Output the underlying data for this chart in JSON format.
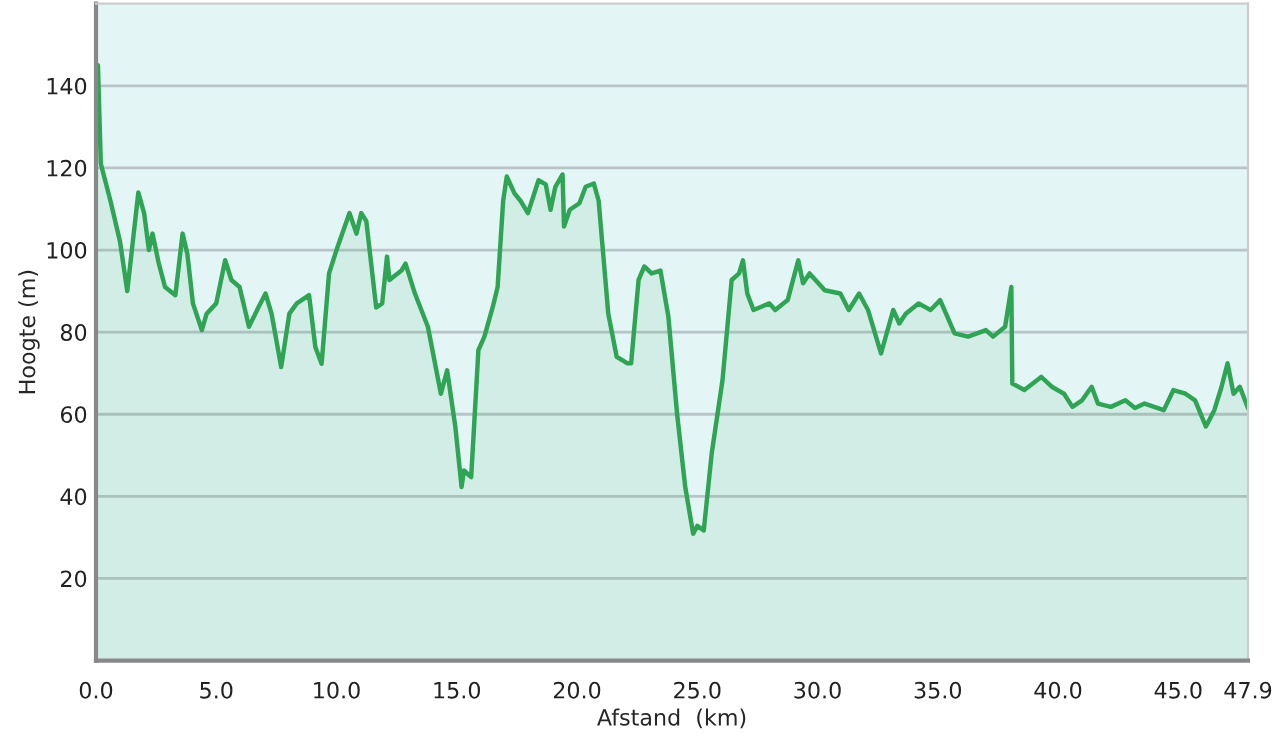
{
  "chart_data": {
    "type": "area",
    "xlabel": "Afstand  (km)",
    "ylabel": "Hoogte (m)",
    "xlim": [
      0,
      47.9
    ],
    "ylim": [
      0,
      160
    ],
    "xticks": [
      {
        "value": 0,
        "label": "0.0"
      },
      {
        "value": 5,
        "label": "5.0"
      },
      {
        "value": 10,
        "label": "10.0"
      },
      {
        "value": 15,
        "label": "15.0"
      },
      {
        "value": 20,
        "label": "20.0"
      },
      {
        "value": 25,
        "label": "25.0"
      },
      {
        "value": 30,
        "label": "30.0"
      },
      {
        "value": 35,
        "label": "35.0"
      },
      {
        "value": 40,
        "label": "40.0"
      },
      {
        "value": 45,
        "label": "45.0"
      },
      {
        "value": 47.9,
        "label": "47.9"
      }
    ],
    "yticks": [
      20,
      40,
      60,
      80,
      100,
      120,
      140
    ],
    "grid": "y",
    "legend": false,
    "series": [
      {
        "color": "#2ea454",
        "x": [
          0,
          0.08,
          0.2,
          0.6,
          1.0,
          1.3,
          1.76,
          2.0,
          2.2,
          2.35,
          2.6,
          2.87,
          3.3,
          3.6,
          3.8,
          4.03,
          4.4,
          4.6,
          5.0,
          5.37,
          5.63,
          5.97,
          6.36,
          6.74,
          7.05,
          7.3,
          7.7,
          8.04,
          8.35,
          8.86,
          9.12,
          9.38,
          9.69,
          10.0,
          10.54,
          10.83,
          11.03,
          11.24,
          11.65,
          11.9,
          12.1,
          12.2,
          12.7,
          12.87,
          13.26,
          13.8,
          14.34,
          14.6,
          14.94,
          15.2,
          15.3,
          15.6,
          15.9,
          16.15,
          16.5,
          16.7,
          16.93,
          17.08,
          17.4,
          17.65,
          17.96,
          18.4,
          18.7,
          18.9,
          19.1,
          19.4,
          19.46,
          19.7,
          20.1,
          20.36,
          20.7,
          20.9,
          21.3,
          21.65,
          22.1,
          22.25,
          22.56,
          22.8,
          23.1,
          23.47,
          23.8,
          24.16,
          24.5,
          24.83,
          25.0,
          25.27,
          25.6,
          26.05,
          26.43,
          26.74,
          26.9,
          27.08,
          27.34,
          28.0,
          28.24,
          28.76,
          29.2,
          29.4,
          29.67,
          30.3,
          30.95,
          31.3,
          31.73,
          32.1,
          32.64,
          33.15,
          33.4,
          33.67,
          34.2,
          34.7,
          35.1,
          35.7,
          36.26,
          37.0,
          37.3,
          37.8,
          38.06,
          38.1,
          38.6,
          39.3,
          39.74,
          40.25,
          40.6,
          41.0,
          41.4,
          41.66,
          42.2,
          42.8,
          43.2,
          43.6,
          44.4,
          44.8,
          45.3,
          45.7,
          46.15,
          46.5,
          46.8,
          47.05,
          47.3,
          47.56,
          47.9
        ],
        "values": [
          140,
          145,
          121,
          112,
          102,
          90,
          114,
          109,
          100,
          104,
          97,
          91,
          89,
          104,
          99,
          87,
          80.5,
          84.5,
          87,
          97.5,
          92.7,
          91,
          81.3,
          85.9,
          89.4,
          84.5,
          71.5,
          84.5,
          87,
          89,
          76.4,
          72.3,
          94.3,
          100,
          109,
          104,
          109,
          107,
          86,
          87,
          98.4,
          92.7,
          95,
          96.7,
          89.4,
          81.3,
          65,
          70.7,
          57,
          42.3,
          46.3,
          44.7,
          75.6,
          78.9,
          86.2,
          91,
          112,
          117.9,
          113.8,
          112,
          109,
          117,
          116,
          109.8,
          115.4,
          118.4,
          105.7,
          109.8,
          111.4,
          115.4,
          116.2,
          112,
          84.5,
          74,
          72.4,
          72.4,
          92.7,
          96,
          94.3,
          95,
          83.7,
          60.2,
          42.3,
          30.9,
          32.8,
          31.7,
          50.4,
          68.3,
          92.7,
          94.3,
          97.5,
          89.4,
          85.4,
          87,
          85.4,
          87.8,
          97.5,
          91.9,
          94.3,
          90.2,
          89.4,
          85.4,
          89.4,
          85.4,
          74.8,
          85.4,
          82.1,
          84.5,
          87,
          85.4,
          87.8,
          79.7,
          78.9,
          80.5,
          78.9,
          81.3,
          91,
          67.5,
          65.9,
          69.1,
          66.7,
          65,
          61.8,
          63.4,
          66.7,
          62.6,
          61.8,
          63.4,
          61.5,
          62.6,
          61,
          65.9,
          65,
          63.4,
          57,
          61,
          66.7,
          72.4,
          65,
          66.7,
          61.5
        ]
      }
    ]
  }
}
